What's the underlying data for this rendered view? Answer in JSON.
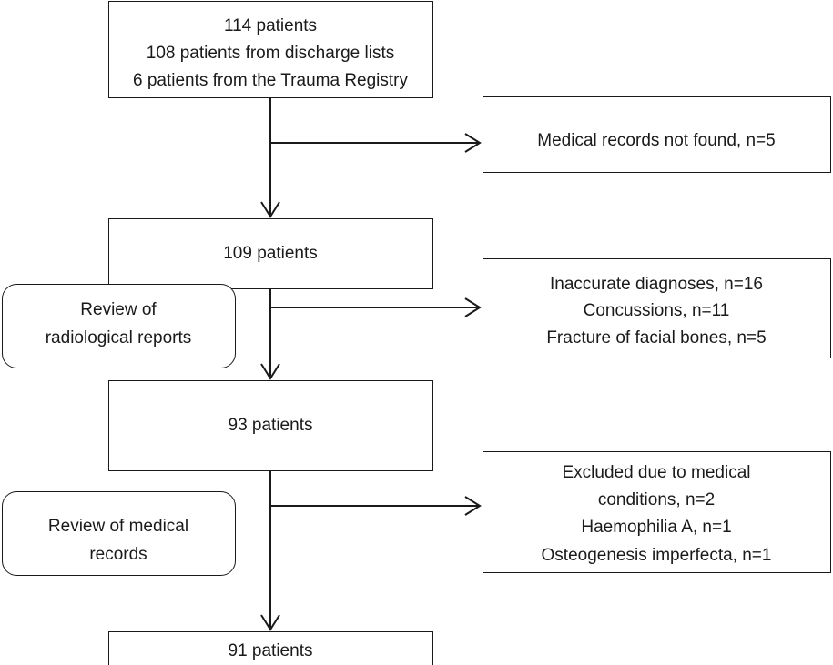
{
  "nodes": [
    {
      "lines": [
        "114 patients",
        "108 patients from discharge lists",
        "6 patients from the Trauma Registry"
      ]
    },
    {
      "lines": [
        "Medical records not found, n=5"
      ]
    },
    {
      "lines": [
        "109 patients"
      ]
    },
    {
      "lines": [
        "Review of",
        "radiological reports"
      ]
    },
    {
      "lines": [
        "Inaccurate diagnoses, n=16",
        "Concussions, n=11",
        "Fracture of facial bones, n=5"
      ]
    },
    {
      "lines": [
        "93 patients"
      ]
    },
    {
      "lines": [
        "Review of medical",
        "records"
      ]
    },
    {
      "lines": [
        "Excluded due to medical",
        "conditions, n=2",
        "Haemophilia A, n=1",
        "Osteogenesis imperfecta, n=1"
      ]
    },
    {
      "lines": [
        "91 patients"
      ]
    }
  ]
}
